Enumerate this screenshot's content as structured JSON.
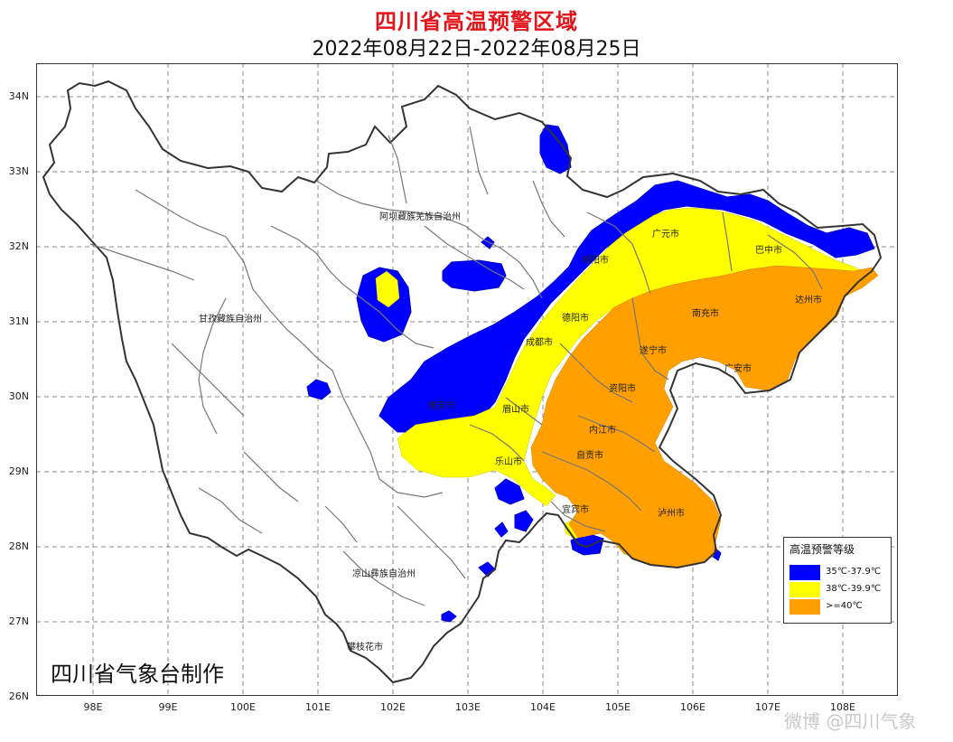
{
  "header": {
    "title": "四川省高温预警区域",
    "subtitle": "2022年08月22日-2022年08月25日"
  },
  "map": {
    "lat_labels": [
      "34N",
      "33N",
      "32N",
      "31N",
      "30N",
      "29N",
      "28N",
      "27N",
      "26N"
    ],
    "lon_labels": [
      "98E",
      "99E",
      "100E",
      "101E",
      "102E",
      "103E",
      "104E",
      "105E",
      "106E",
      "107E",
      "108E"
    ],
    "places": [
      {
        "name": "阿坝藏族羌族自治州"
      },
      {
        "name": "甘孜藏族自治州"
      },
      {
        "name": "凉山彝族自治州"
      },
      {
        "name": "攀枝花市"
      },
      {
        "name": "广元市"
      },
      {
        "name": "巴中市"
      },
      {
        "name": "绵阳市"
      },
      {
        "name": "达州市"
      },
      {
        "name": "德阳市"
      },
      {
        "name": "南充市"
      },
      {
        "name": "成都市"
      },
      {
        "name": "遂宁市"
      },
      {
        "name": "广安市"
      },
      {
        "name": "雅安市"
      },
      {
        "name": "眉山市"
      },
      {
        "name": "资阳市"
      },
      {
        "name": "内江市"
      },
      {
        "name": "乐山市"
      },
      {
        "name": "自贡市"
      },
      {
        "name": "宜宾市"
      },
      {
        "name": "泸州市"
      }
    ]
  },
  "legend": {
    "title": "高温预警等级",
    "items": [
      {
        "label": "35℃-37.9℃",
        "color": "#0000ff"
      },
      {
        "label": "38℃-39.9℃",
        "color": "#ffff00"
      },
      {
        "label": ">=40℃",
        "color": "#ff9f00"
      }
    ]
  },
  "credit": "四川省气象台制作",
  "watermark": "微博 @四川气象"
}
